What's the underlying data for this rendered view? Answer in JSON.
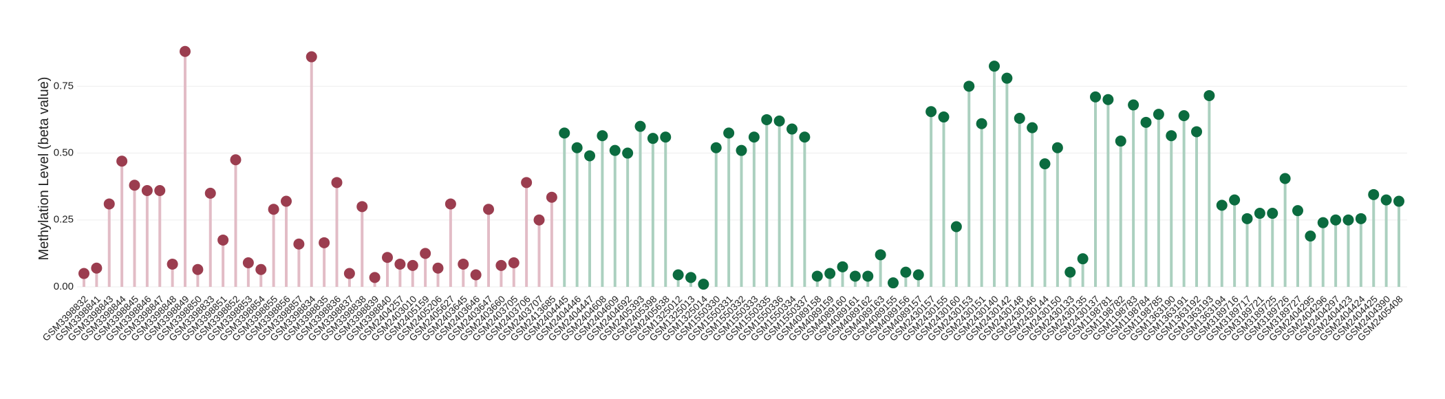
{
  "chart_data": {
    "type": "lollipop",
    "y_label": "Methylation Level (beta value)",
    "categories": [
      "GSM3398832",
      "GSM3398841",
      "GSM3398843",
      "GSM3398844",
      "GSM3398845",
      "GSM3398846",
      "GSM3398847",
      "GSM3398848",
      "GSM3398849",
      "GSM3398850",
      "GSM3398833",
      "GSM3398851",
      "GSM3398852",
      "GSM3398853",
      "GSM3398854",
      "GSM3398855",
      "GSM3398856",
      "GSM3398857",
      "GSM3398834",
      "GSM3398835",
      "GSM3398836",
      "GSM3398837",
      "GSM3398838",
      "GSM3398839",
      "GSM3398840",
      "GSM2404257",
      "GSM2403010",
      "GSM2405159",
      "GSM2405206",
      "GSM2405627",
      "GSM2403645",
      "GSM2403646",
      "GSM2403647",
      "GSM2403660",
      "GSM2403705",
      "GSM2403706",
      "GSM2403707",
      "GSM2413685",
      "GSM2404445",
      "GSM2404446",
      "GSM2404447",
      "GSM2404608",
      "GSM2404609",
      "GSM2404692",
      "GSM2405393",
      "GSM2405398",
      "GSM2405638",
      "GSM1325012",
      "GSM1325013",
      "GSM1325014",
      "GSM1550330",
      "GSM1550331",
      "GSM1550332",
      "GSM1550333",
      "GSM1550335",
      "GSM1550336",
      "GSM1550334",
      "GSM1550337",
      "GSM4089158",
      "GSM4089159",
      "GSM4089160",
      "GSM4089161",
      "GSM4089162",
      "GSM4089163",
      "GSM4089155",
      "GSM4089156",
      "GSM4089157",
      "GSM2430157",
      "GSM2430155",
      "GSM2430160",
      "GSM2430153",
      "GSM2430151",
      "GSM2430140",
      "GSM2430142",
      "GSM2430148",
      "GSM2430146",
      "GSM2430144",
      "GSM2430150",
      "GSM2430133",
      "GSM2430135",
      "GSM2430137",
      "GSM1198781",
      "GSM1198782",
      "GSM1198783",
      "GSM1198784",
      "GSM1198785",
      "GSM1363190",
      "GSM1363191",
      "GSM1363192",
      "GSM1363193",
      "GSM1363194",
      "GSM3189716",
      "GSM3189717",
      "GSM3189721",
      "GSM3189725",
      "GSM3189726",
      "GSM3189727",
      "GSM2404295",
      "GSM2404296",
      "GSM2404297",
      "GSM2404423",
      "GSM2404424",
      "GSM2404425",
      "GSM2404390",
      "GSM2405408"
    ],
    "values": [
      0.05,
      0.07,
      0.31,
      0.47,
      0.38,
      0.36,
      0.36,
      0.085,
      0.88,
      0.065,
      0.35,
      0.175,
      0.475,
      0.09,
      0.065,
      0.29,
      0.32,
      0.16,
      0.86,
      0.165,
      0.39,
      0.05,
      0.3,
      0.035,
      0.11,
      0.085,
      0.08,
      0.125,
      0.07,
      0.31,
      0.085,
      0.045,
      0.29,
      0.08,
      0.09,
      0.39,
      0.25,
      0.335,
      0.575,
      0.52,
      0.49,
      0.565,
      0.51,
      0.5,
      0.6,
      0.555,
      0.56,
      0.045,
      0.035,
      0.01,
      0.52,
      0.575,
      0.51,
      0.56,
      0.625,
      0.62,
      0.59,
      0.56,
      0.04,
      0.05,
      0.075,
      0.04,
      0.04,
      0.12,
      0.015,
      0.055,
      0.045,
      0.655,
      0.635,
      0.225,
      0.75,
      0.61,
      0.825,
      0.78,
      0.63,
      0.595,
      0.46,
      0.52,
      0.055,
      0.105,
      0.71,
      0.7,
      0.545,
      0.68,
      0.615,
      0.645,
      0.565,
      0.64,
      0.58,
      0.715,
      0.305,
      0.325,
      0.255,
      0.275,
      0.275,
      0.405,
      0.285,
      0.19,
      0.24,
      0.25,
      0.25,
      0.255,
      0.345,
      0.325,
      0.32
    ],
    "palette": {
      "a": {
        "dot": "#9b3d4f",
        "stem": "#e2bcc6"
      },
      "b": {
        "dot": "#0b6b3f",
        "stem": "#abd0bf"
      }
    },
    "point_groups": "aaaaaaaaaaaaaaaaaaaaaaaaaaaaaaaaaaaaaabbbbbbbbbbbbbbbbbbbbbbbbbbbbbbbbbbbbbbbbbbbbbbbbbbbbbbbbbbbbbbbbbbb",
    "ylim": [
      0,
      0.9
    ],
    "yticks": [
      {
        "value": 0,
        "label": "0.00"
      },
      {
        "value": 0.25,
        "label": "0.25"
      },
      {
        "value": 0.5,
        "label": "0.50"
      },
      {
        "value": 0.75,
        "label": "0.75"
      }
    ],
    "grid": true
  }
}
